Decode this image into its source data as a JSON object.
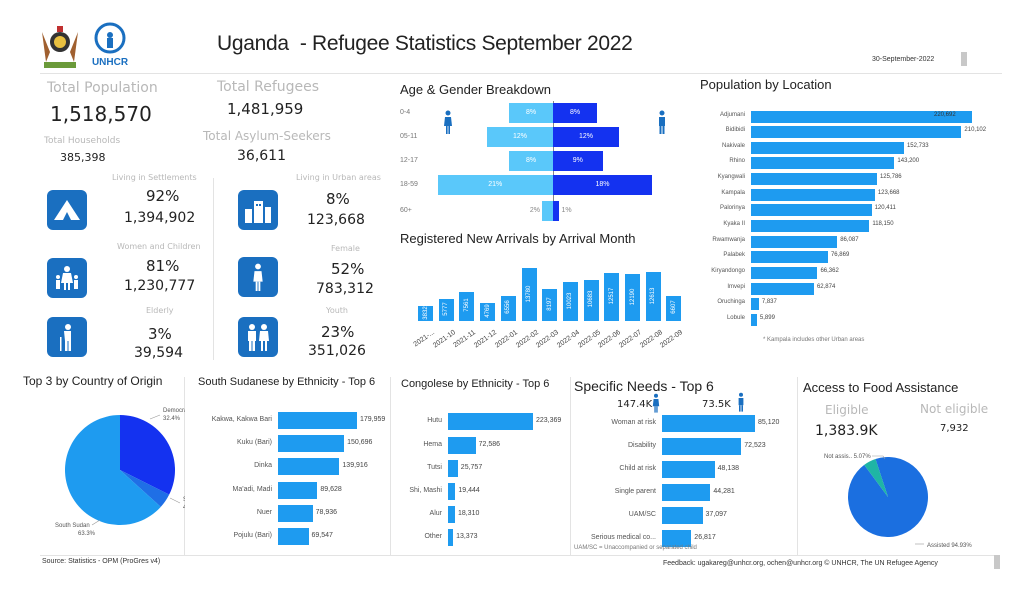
{
  "header": {
    "title": "Uganda  - Refugee Statistics September 2022",
    "date": "30-September-2022",
    "logos": {
      "coat_of_arms": "Uganda coat of arms",
      "unhcr": "UNHCR"
    }
  },
  "kpis": {
    "total_population": {
      "label": "Total Population",
      "value": "1,518,570"
    },
    "total_refugees": {
      "label": "Total Refugees",
      "value": "1,481,959"
    },
    "total_households": {
      "label": "Total Households",
      "value": "385,398"
    },
    "total_asylum_seekers": {
      "label": "Total Asylum-Seekers",
      "value": "36,611"
    },
    "cards": [
      {
        "label": "Living in Settlements",
        "pct": "92%",
        "value": "1,394,902",
        "icon": "tent-icon"
      },
      {
        "label": "Living in Urban areas",
        "pct": "8%",
        "value": "123,668",
        "icon": "buildings-icon"
      },
      {
        "label": "Women and Children",
        "pct": "81%",
        "value": "1,230,777",
        "icon": "woman-children-icon"
      },
      {
        "label": "Female",
        "pct": "52%",
        "value": "783,312",
        "icon": "female-icon"
      },
      {
        "label": "Elderly",
        "pct": "3%",
        "value": "39,594",
        "icon": "elderly-icon"
      },
      {
        "label": "Youth",
        "pct": "23%",
        "value": "351,026",
        "icon": "youth-icon"
      }
    ]
  },
  "colors": {
    "bar": "#1e9bf0",
    "female": "#5ac8fa",
    "male": "#1432f0",
    "tile": "#1a6fc0",
    "pie_light": "#1e9bf0",
    "pie_dark": "#1432f0",
    "pie_mid": "#1f6fe6",
    "food_assisted": "#1b6fe0",
    "food_not": "#1fb5a5"
  },
  "chart_data": [
    {
      "type": "bar",
      "title": "Age & Gender Breakdown",
      "orientation": "population-pyramid",
      "categories": [
        "0-4",
        "05-11",
        "12-17",
        "18-59",
        "60+"
      ],
      "series": [
        {
          "name": "female",
          "values": [
            8,
            12,
            8,
            21,
            2
          ],
          "labels": [
            "8%",
            "12%",
            "8%",
            "21%",
            "2%"
          ]
        },
        {
          "name": "male",
          "values": [
            8,
            12,
            9,
            18,
            1
          ],
          "labels": [
            "8%",
            "12%",
            "9%",
            "18%",
            "1%"
          ]
        }
      ]
    },
    {
      "type": "bar",
      "title": "Registered New Arrivals by Arrival Month",
      "categories": [
        "2021-...",
        "2021-10",
        "2021-11",
        "2021-12",
        "2022-01",
        "2022-02",
        "2022-03",
        "2022-04",
        "2022-05",
        "2022-06",
        "2022-07",
        "2022-08",
        "2022-09"
      ],
      "values": [
        3832,
        5777,
        7561,
        4769,
        6556,
        13780,
        8197,
        10023,
        10683,
        12517,
        12190,
        12613,
        6607
      ]
    },
    {
      "type": "bar",
      "title": "Population by Location",
      "orientation": "horizontal",
      "categories": [
        "Adjumani",
        "Bidibidi",
        "Nakivale",
        "Rhino",
        "Kyangwali",
        "Kampala",
        "Palorinya",
        "Kyaka II",
        "Rwamwanja",
        "Palabek",
        "Kiryandongo",
        "Imvepi",
        "Oruchinga",
        "Lobule"
      ],
      "values": [
        220692,
        210102,
        152733,
        143200,
        125786,
        123668,
        120411,
        118150,
        86087,
        76869,
        66362,
        62874,
        7837,
        5899
      ],
      "labels": [
        "220,692",
        "210,102",
        "152,733",
        "143,200",
        "125,786",
        "123,668",
        "120,411",
        "118,150",
        "86,087",
        "76,869",
        "66,362",
        "62,874",
        "7,837",
        "5,899"
      ],
      "note": "* Kampala  includes other Urban areas"
    },
    {
      "type": "pie",
      "title": "Top 3 by Country of Origin",
      "categories": [
        "South Sudan",
        "Democratic Re..",
        "Somalia"
      ],
      "values": [
        63.3,
        32.4,
        4.3
      ],
      "labels": [
        "63.3%",
        "32.4%",
        "4.3%"
      ]
    },
    {
      "type": "bar",
      "title": "South Sudanese by Ethnicity - Top 6",
      "orientation": "horizontal",
      "categories": [
        "Kakwa, Kakwa Bari",
        "Kuku (Bari)",
        "Dinka",
        "Ma'adi, Madi",
        "Nuer",
        "Pojulu (Bari)"
      ],
      "values": [
        179959,
        150696,
        139916,
        89628,
        78936,
        69547
      ],
      "labels": [
        "179,959",
        "150,696",
        "139,916",
        "89,628",
        "78,936",
        "69,547"
      ]
    },
    {
      "type": "bar",
      "title": "Congolese by Ethnicity - Top 6",
      "orientation": "horizontal",
      "categories": [
        "Hutu",
        "Hema",
        "Tutsi",
        "Shi, Mashi",
        "Alur",
        "Other"
      ],
      "values": [
        223369,
        72586,
        25757,
        19444,
        18310,
        13373
      ],
      "labels": [
        "223,369",
        "72,586",
        "25,757",
        "19,444",
        "18,310",
        "13,373"
      ]
    },
    {
      "type": "bar",
      "title": "Specific Needs - Top 6",
      "orientation": "horizontal",
      "categories": [
        "Woman at risk",
        "Disability",
        "Child at risk",
        "Single parent",
        "UAM/SC",
        "Serious medical co..."
      ],
      "values": [
        85120,
        72523,
        48138,
        44281,
        37097,
        26817
      ],
      "labels": [
        "85,120",
        "72,523",
        "48,138",
        "44,281",
        "37,097",
        "26,817"
      ],
      "female_total": "147.4K",
      "male_total": "73.5K",
      "note": "UAM/SC = Unaccompanied or separated child"
    },
    {
      "type": "pie",
      "title": "Access to Food Assistance",
      "categories": [
        "Not assis..",
        "Assisted"
      ],
      "values": [
        5.07,
        94.93
      ],
      "labels": [
        "5.07%",
        "94.93%"
      ],
      "eligible_label": "Eligible",
      "eligible_value": "1,383.9K",
      "not_eligible_label": "Not eligible",
      "not_eligible_value": "7,932"
    }
  ],
  "footer": {
    "source": "Source: Statistics - OPM (ProGres v4)",
    "feedback": "Feedback: ugakareg@unhcr.org, ochen@unhcr.org © UNHCR, The UN Refugee Agency"
  }
}
